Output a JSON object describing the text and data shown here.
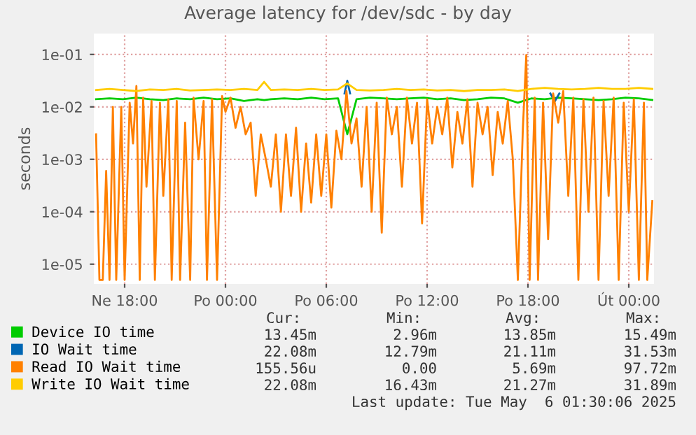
{
  "chart_data": {
    "type": "line",
    "title": "Average latency for /dev/sdc - by day",
    "ylabel": "seconds",
    "log": "y",
    "grid": true,
    "legend": "bottom",
    "marker": "none",
    "line_style": "solid",
    "xlim": [
      "2025-05-04T16:10",
      "2025-05-06T01:30"
    ],
    "ylim": [
      4.2e-06,
      0.25
    ],
    "xticks": [
      {
        "value": "2025-05-04T18:00",
        "label": "Ne 18:00"
      },
      {
        "value": "2025-05-05T00:00",
        "label": "Po 00:00"
      },
      {
        "value": "2025-05-05T06:00",
        "label": "Po 06:00"
      },
      {
        "value": "2025-05-05T12:00",
        "label": "Po 12:00"
      },
      {
        "value": "2025-05-05T18:00",
        "label": "Po 18:00"
      },
      {
        "value": "2025-05-06T00:00",
        "label": "Út 00:00"
      }
    ],
    "yticks": [
      {
        "value": 1e-05,
        "label": "1e-05"
      },
      {
        "value": 0.0001,
        "label": "1e-04"
      },
      {
        "value": 0.001,
        "label": "1e-03"
      },
      {
        "value": 0.01,
        "label": "1e-02"
      },
      {
        "value": 0.1,
        "label": "1e-01"
      }
    ],
    "series": [
      {
        "name": "Device IO time",
        "color": "#00cc00",
        "x": [
          "2025-05-04T16:18",
          "2025-05-04T17:06",
          "2025-05-04T17:54",
          "2025-05-04T18:42",
          "2025-05-04T19:30",
          "2025-05-04T20:18",
          "2025-05-04T21:06",
          "2025-05-04T21:54",
          "2025-05-04T22:42",
          "2025-05-04T23:30",
          "2025-05-05T00:18",
          "2025-05-05T01:06",
          "2025-05-05T01:54",
          "2025-05-05T02:18",
          "2025-05-05T02:42",
          "2025-05-05T03:30",
          "2025-05-05T04:18",
          "2025-05-05T05:06",
          "2025-05-05T05:54",
          "2025-05-05T06:42",
          "2025-05-05T07:15",
          "2025-05-05T07:48",
          "2025-05-05T08:36",
          "2025-05-05T09:24",
          "2025-05-05T10:12",
          "2025-05-05T11:00",
          "2025-05-05T11:48",
          "2025-05-05T12:36",
          "2025-05-05T13:24",
          "2025-05-05T14:12",
          "2025-05-05T15:00",
          "2025-05-05T15:48",
          "2025-05-05T16:36",
          "2025-05-05T17:24",
          "2025-05-05T18:12",
          "2025-05-05T19:00",
          "2025-05-05T19:48",
          "2025-05-05T20:36",
          "2025-05-05T21:24",
          "2025-05-05T22:12",
          "2025-05-05T23:00",
          "2025-05-05T23:48",
          "2025-05-06T00:36",
          "2025-05-06T01:24"
        ],
        "values": [
          0.014,
          0.0145,
          0.014,
          0.015,
          0.014,
          0.0135,
          0.0145,
          0.014,
          0.015,
          0.014,
          0.0145,
          0.013,
          0.014,
          0.0135,
          0.014,
          0.0145,
          0.014,
          0.015,
          0.014,
          0.0145,
          0.003,
          0.014,
          0.015,
          0.0145,
          0.014,
          0.0145,
          0.015,
          0.014,
          0.0145,
          0.0135,
          0.014,
          0.015,
          0.0145,
          0.012,
          0.0145,
          0.014,
          0.015,
          0.0145,
          0.014,
          0.0135,
          0.014,
          0.015,
          0.0145,
          0.0135
        ]
      },
      {
        "name": "IO Wait time",
        "color": "#0066b3",
        "x": [
          "2025-05-05T07:05",
          "2025-05-05T07:15",
          "2025-05-05T07:25",
          "2025-05-05T12:00",
          "2025-05-05T19:20",
          "2025-05-05T19:36",
          "2025-05-05T19:52"
        ],
        "values": [
          0.018,
          0.0315,
          0.018,
          null,
          0.018,
          0.0128,
          0.018
        ]
      },
      {
        "name": "Read IO Wait time",
        "color": "#ff8000",
        "x": [
          "2025-05-04T16:18",
          "2025-05-04T16:30",
          "2025-05-04T16:42",
          "2025-05-04T16:54",
          "2025-05-04T17:06",
          "2025-05-04T17:18",
          "2025-05-04T17:30",
          "2025-05-04T17:48",
          "2025-05-04T18:00",
          "2025-05-04T18:18",
          "2025-05-04T18:30",
          "2025-05-04T18:42",
          "2025-05-04T18:54",
          "2025-05-04T19:06",
          "2025-05-04T19:18",
          "2025-05-04T19:36",
          "2025-05-04T19:48",
          "2025-05-04T20:06",
          "2025-05-04T20:18",
          "2025-05-04T20:36",
          "2025-05-04T20:48",
          "2025-05-04T21:06",
          "2025-05-04T21:18",
          "2025-05-04T21:36",
          "2025-05-04T21:54",
          "2025-05-04T22:06",
          "2025-05-04T22:24",
          "2025-05-04T22:42",
          "2025-05-04T22:54",
          "2025-05-04T23:12",
          "2025-05-04T23:30",
          "2025-05-04T23:48",
          "2025-05-05T00:00",
          "2025-05-05T00:18",
          "2025-05-05T00:36",
          "2025-05-05T00:54",
          "2025-05-05T01:12",
          "2025-05-05T01:30",
          "2025-05-05T01:48",
          "2025-05-05T02:06",
          "2025-05-05T02:24",
          "2025-05-05T02:42",
          "2025-05-05T03:00",
          "2025-05-05T03:18",
          "2025-05-05T03:36",
          "2025-05-05T03:54",
          "2025-05-05T04:12",
          "2025-05-05T04:30",
          "2025-05-05T04:48",
          "2025-05-05T05:06",
          "2025-05-05T05:24",
          "2025-05-05T05:42",
          "2025-05-05T06:00",
          "2025-05-05T06:18",
          "2025-05-05T06:36",
          "2025-05-05T06:54",
          "2025-05-05T07:12",
          "2025-05-05T07:30",
          "2025-05-05T07:48",
          "2025-05-05T08:06",
          "2025-05-05T08:24",
          "2025-05-05T08:42",
          "2025-05-05T09:00",
          "2025-05-05T09:18",
          "2025-05-05T09:36",
          "2025-05-05T09:54",
          "2025-05-05T10:12",
          "2025-05-05T10:30",
          "2025-05-05T10:48",
          "2025-05-05T11:06",
          "2025-05-05T11:24",
          "2025-05-05T11:42",
          "2025-05-05T12:00",
          "2025-05-05T12:18",
          "2025-05-05T12:36",
          "2025-05-05T12:54",
          "2025-05-05T13:12",
          "2025-05-05T13:30",
          "2025-05-05T13:48",
          "2025-05-05T14:06",
          "2025-05-05T14:24",
          "2025-05-05T14:42",
          "2025-05-05T15:00",
          "2025-05-05T15:18",
          "2025-05-05T15:36",
          "2025-05-05T15:54",
          "2025-05-05T16:12",
          "2025-05-05T16:30",
          "2025-05-05T16:48",
          "2025-05-05T17:06",
          "2025-05-05T17:24",
          "2025-05-05T17:42",
          "2025-05-05T17:54",
          "2025-05-05T18:06",
          "2025-05-05T18:24",
          "2025-05-05T18:36",
          "2025-05-05T18:54",
          "2025-05-05T19:12",
          "2025-05-05T19:30",
          "2025-05-05T19:48",
          "2025-05-05T20:06",
          "2025-05-05T20:24",
          "2025-05-05T20:42",
          "2025-05-05T21:00",
          "2025-05-05T21:18",
          "2025-05-05T21:36",
          "2025-05-05T21:54",
          "2025-05-05T22:12",
          "2025-05-05T22:30",
          "2025-05-05T22:48",
          "2025-05-05T23:06",
          "2025-05-05T23:24",
          "2025-05-05T23:42",
          "2025-05-06T00:00",
          "2025-05-06T00:18",
          "2025-05-06T00:36",
          "2025-05-06T00:54",
          "2025-05-06T01:06",
          "2025-05-06T01:24"
        ],
        "values": [
          0.003,
          5e-06,
          5e-06,
          0.0006,
          5e-06,
          0.01,
          5e-06,
          0.01,
          5e-06,
          0.012,
          0.002,
          0.025,
          5e-06,
          0.015,
          0.0003,
          0.013,
          5e-06,
          0.012,
          0.0002,
          0.014,
          5e-06,
          0.013,
          5e-06,
          0.005,
          5e-06,
          0.015,
          0.001,
          0.013,
          5e-06,
          0.014,
          5e-06,
          0.016,
          0.008,
          0.015,
          0.004,
          0.01,
          0.003,
          0.005,
          0.0002,
          0.003,
          0.001,
          0.0003,
          0.003,
          0.0001,
          0.003,
          0.0002,
          0.004,
          0.0001,
          0.002,
          0.00015,
          0.003,
          0.0002,
          0.003,
          0.00012,
          0.0035,
          0.001,
          0.02,
          0.002,
          0.006,
          0.0003,
          0.01,
          0.0001,
          0.012,
          4e-05,
          0.015,
          0.003,
          0.01,
          0.0003,
          0.015,
          0.002,
          0.012,
          6e-05,
          0.014,
          0.002,
          0.01,
          0.003,
          0.015,
          0.0007,
          0.008,
          0.002,
          0.014,
          0.0003,
          0.012,
          0.003,
          0.01,
          0.0005,
          0.008,
          0.002,
          0.013,
          0.001,
          5e-06,
          0.004,
          0.0977,
          5e-06,
          0.015,
          5e-06,
          0.012,
          3e-05,
          0.018,
          0.005,
          0.02,
          0.0002,
          0.015,
          5e-06,
          0.014,
          0.0001,
          0.015,
          5e-06,
          0.013,
          0.0002,
          0.015,
          5e-06,
          0.012,
          0.0001,
          0.014,
          5e-06,
          0.012,
          5e-06,
          0.00016
        ]
      },
      {
        "name": "Write IO Wait time",
        "color": "#ffcc00",
        "x": [
          "2025-05-04T16:18",
          "2025-05-04T17:06",
          "2025-05-04T17:54",
          "2025-05-04T18:42",
          "2025-05-04T19:30",
          "2025-05-04T20:18",
          "2025-05-04T21:06",
          "2025-05-04T21:54",
          "2025-05-04T22:42",
          "2025-05-04T23:30",
          "2025-05-05T00:18",
          "2025-05-05T01:06",
          "2025-05-05T01:54",
          "2025-05-05T02:18",
          "2025-05-05T02:42",
          "2025-05-05T03:30",
          "2025-05-05T04:18",
          "2025-05-05T05:06",
          "2025-05-05T05:54",
          "2025-05-05T06:42",
          "2025-05-05T07:15",
          "2025-05-05T07:48",
          "2025-05-05T08:36",
          "2025-05-05T09:24",
          "2025-05-05T10:12",
          "2025-05-05T11:00",
          "2025-05-05T11:48",
          "2025-05-05T12:36",
          "2025-05-05T13:24",
          "2025-05-05T14:12",
          "2025-05-05T15:00",
          "2025-05-05T15:48",
          "2025-05-05T16:36",
          "2025-05-05T17:24",
          "2025-05-05T18:12",
          "2025-05-05T19:00",
          "2025-05-05T19:48",
          "2025-05-05T20:36",
          "2025-05-05T21:24",
          "2025-05-05T22:12",
          "2025-05-05T23:00",
          "2025-05-05T23:48",
          "2025-05-06T00:36",
          "2025-05-06T01:24"
        ],
        "values": [
          0.021,
          0.022,
          0.021,
          0.02,
          0.0215,
          0.021,
          0.022,
          0.0205,
          0.021,
          0.0215,
          0.021,
          0.022,
          0.021,
          0.03,
          0.021,
          0.0215,
          0.021,
          0.022,
          0.021,
          0.0215,
          0.028,
          0.021,
          0.0205,
          0.021,
          0.022,
          0.021,
          0.0215,
          0.0205,
          0.021,
          0.02,
          0.021,
          0.021,
          0.0215,
          0.02,
          0.022,
          0.023,
          0.022,
          0.0215,
          0.022,
          0.023,
          0.022,
          0.022,
          0.023,
          0.022
        ]
      }
    ],
    "annotations": [
      "Cur:",
      "Min:",
      "Avg:",
      "Max:",
      "13.45m",
      "2.96m",
      "13.85m",
      "15.49m",
      "22.08m",
      "12.79m",
      "21.11m",
      "31.53m",
      "155.56u",
      "0.00",
      "5.69m",
      "97.72m",
      "22.08m",
      "16.43m",
      "21.27m",
      "31.89m",
      "Last update: Tue May  6 01:30:06 2025"
    ]
  }
}
